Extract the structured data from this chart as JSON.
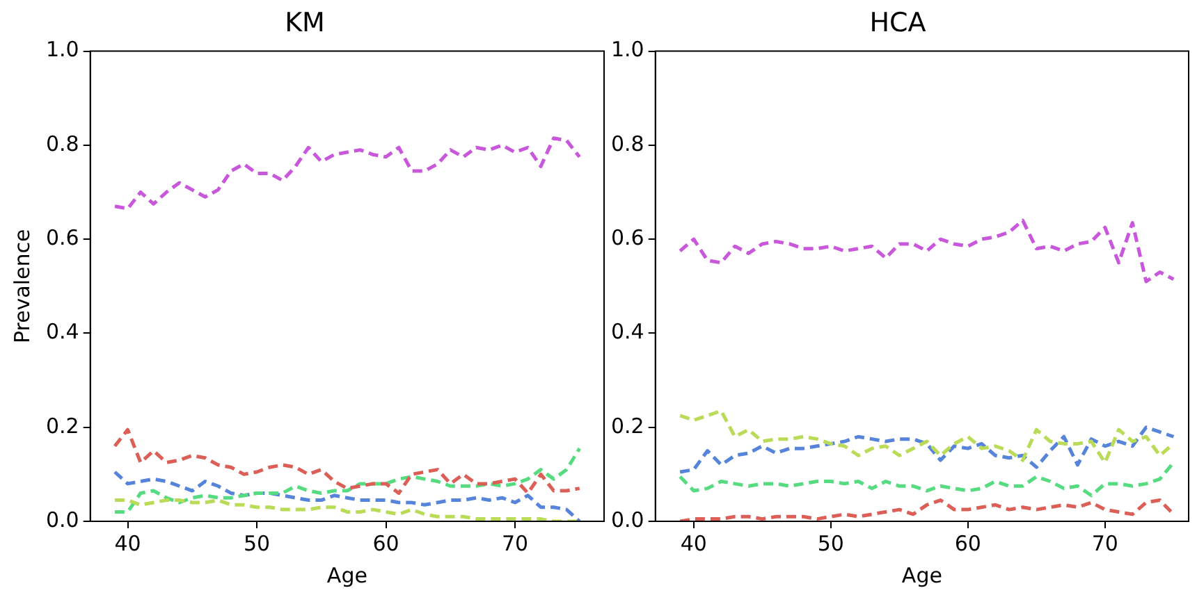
{
  "chart_data": [
    {
      "type": "line",
      "title": "KM",
      "xlabel": "Age",
      "ylabel": "Prevalence",
      "x": [
        39,
        40,
        41,
        42,
        43,
        44,
        45,
        46,
        47,
        48,
        49,
        50,
        51,
        52,
        53,
        54,
        55,
        56,
        57,
        58,
        59,
        60,
        61,
        62,
        63,
        64,
        65,
        66,
        67,
        68,
        69,
        70,
        71,
        72,
        73,
        74,
        75
      ],
      "xlim": [
        37.1,
        76.9
      ],
      "xticks": [
        40,
        50,
        60,
        70
      ],
      "ylim": [
        0,
        1
      ],
      "yticks": [
        {
          "value": 0,
          "label": "0.0"
        },
        {
          "value": 0.2,
          "label": "0.2"
        },
        {
          "value": 0.4,
          "label": "0.4"
        },
        {
          "value": 0.6,
          "label": "0.6"
        },
        {
          "value": 0.8,
          "label": "0.8"
        },
        {
          "value": 1,
          "label": "1.0"
        }
      ],
      "grid": false,
      "legend": false,
      "marker": "none",
      "line_style": "dashed",
      "series": [
        {
          "color": "#db5f57",
          "values": [
            0.16,
            0.195,
            0.125,
            0.15,
            0.125,
            0.13,
            0.14,
            0.135,
            0.12,
            0.115,
            0.1,
            0.105,
            0.115,
            0.12,
            0.115,
            0.1,
            0.11,
            0.085,
            0.07,
            0.075,
            0.08,
            0.08,
            0.06,
            0.1,
            0.105,
            0.11,
            0.08,
            0.1,
            0.08,
            0.08,
            0.085,
            0.09,
            0.06,
            0.1,
            0.065,
            0.065,
            0.07
          ]
        },
        {
          "color": "#b9db57",
          "values": [
            0.045,
            0.045,
            0.035,
            0.04,
            0.045,
            0.045,
            0.04,
            0.04,
            0.045,
            0.035,
            0.035,
            0.03,
            0.03,
            0.025,
            0.025,
            0.025,
            0.03,
            0.03,
            0.02,
            0.02,
            0.025,
            0.02,
            0.015,
            0.025,
            0.015,
            0.01,
            0.01,
            0.01,
            0.005,
            0.005,
            0.005,
            0.005,
            0.005,
            0.005,
            0,
            0,
            0
          ]
        },
        {
          "color": "#57db80",
          "values": [
            0.02,
            0.02,
            0.06,
            0.065,
            0.05,
            0.04,
            0.05,
            0.055,
            0.05,
            0.05,
            0.055,
            0.06,
            0.06,
            0.06,
            0.075,
            0.065,
            0.06,
            0.065,
            0.065,
            0.08,
            0.08,
            0.08,
            0.09,
            0.095,
            0.09,
            0.085,
            0.075,
            0.075,
            0.075,
            0.08,
            0.075,
            0.08,
            0.09,
            0.11,
            0.09,
            0.11,
            0.155
          ]
        },
        {
          "color": "#5784db",
          "values": [
            0.105,
            0.08,
            0.085,
            0.09,
            0.085,
            0.075,
            0.065,
            0.085,
            0.075,
            0.06,
            0.055,
            0.06,
            0.06,
            0.055,
            0.05,
            0.045,
            0.045,
            0.055,
            0.05,
            0.045,
            0.045,
            0.045,
            0.04,
            0.04,
            0.035,
            0.04,
            0.045,
            0.045,
            0.05,
            0.045,
            0.05,
            0.04,
            0.055,
            0.03,
            0.03,
            0.025,
            0
          ]
        },
        {
          "color": "#c957db",
          "values": [
            0.67,
            0.665,
            0.7,
            0.675,
            0.7,
            0.72,
            0.705,
            0.69,
            0.705,
            0.745,
            0.76,
            0.74,
            0.74,
            0.725,
            0.755,
            0.795,
            0.765,
            0.78,
            0.785,
            0.79,
            0.78,
            0.775,
            0.795,
            0.745,
            0.745,
            0.76,
            0.79,
            0.775,
            0.795,
            0.79,
            0.8,
            0.785,
            0.795,
            0.755,
            0.815,
            0.81,
            0.775
          ]
        }
      ]
    },
    {
      "type": "line",
      "title": "HCA",
      "xlabel": "Age",
      "x": [
        39,
        40,
        41,
        42,
        43,
        44,
        45,
        46,
        47,
        48,
        49,
        50,
        51,
        52,
        53,
        54,
        55,
        56,
        57,
        58,
        59,
        60,
        61,
        62,
        63,
        64,
        65,
        66,
        67,
        68,
        69,
        70,
        71,
        72,
        73,
        74,
        75
      ],
      "xlim": [
        37.2,
        76.1
      ],
      "xticks": [
        40,
        50,
        60,
        70
      ],
      "ylim": [
        0,
        1
      ],
      "yticks": [
        {
          "value": 0,
          "label": "0.0"
        },
        {
          "value": 0.2,
          "label": "0.2"
        },
        {
          "value": 0.4,
          "label": "0.4"
        },
        {
          "value": 0.6,
          "label": "0.6"
        },
        {
          "value": 0.8,
          "label": "0.8"
        },
        {
          "value": 1,
          "label": "1.0"
        }
      ],
      "grid": false,
      "legend": false,
      "marker": "none",
      "line_style": "dashed",
      "series": [
        {
          "color": "#db5f57",
          "values": [
            0,
            0.005,
            0.005,
            0.005,
            0.01,
            0.01,
            0.005,
            0.01,
            0.01,
            0.01,
            0.005,
            0.01,
            0.015,
            0.01,
            0.015,
            0.02,
            0.025,
            0.015,
            0.035,
            0.045,
            0.025,
            0.025,
            0.03,
            0.035,
            0.025,
            0.03,
            0.025,
            0.03,
            0.035,
            0.03,
            0.04,
            0.025,
            0.02,
            0.015,
            0.04,
            0.045,
            0.015
          ]
        },
        {
          "color": "#b9db57",
          "values": [
            0.225,
            0.215,
            0.225,
            0.235,
            0.18,
            0.195,
            0.17,
            0.175,
            0.175,
            0.18,
            0.175,
            0.165,
            0.16,
            0.14,
            0.155,
            0.16,
            0.14,
            0.155,
            0.17,
            0.14,
            0.165,
            0.18,
            0.155,
            0.16,
            0.15,
            0.13,
            0.195,
            0.17,
            0.165,
            0.165,
            0.17,
            0.125,
            0.195,
            0.17,
            0.18,
            0.14,
            0.165
          ]
        },
        {
          "color": "#57db80",
          "values": [
            0.095,
            0.065,
            0.07,
            0.085,
            0.08,
            0.075,
            0.08,
            0.08,
            0.075,
            0.08,
            0.085,
            0.085,
            0.08,
            0.085,
            0.07,
            0.085,
            0.075,
            0.075,
            0.065,
            0.075,
            0.07,
            0.065,
            0.07,
            0.085,
            0.075,
            0.075,
            0.095,
            0.085,
            0.07,
            0.075,
            0.055,
            0.08,
            0.08,
            0.075,
            0.08,
            0.09,
            0.125
          ]
        },
        {
          "color": "#5784db",
          "values": [
            0.105,
            0.11,
            0.15,
            0.12,
            0.14,
            0.145,
            0.16,
            0.145,
            0.155,
            0.155,
            0.16,
            0.165,
            0.17,
            0.18,
            0.175,
            0.17,
            0.175,
            0.175,
            0.165,
            0.13,
            0.16,
            0.155,
            0.165,
            0.14,
            0.135,
            0.14,
            0.115,
            0.15,
            0.18,
            0.12,
            0.175,
            0.16,
            0.17,
            0.16,
            0.2,
            0.19,
            0.18
          ]
        },
        {
          "color": "#c957db",
          "values": [
            0.575,
            0.6,
            0.555,
            0.55,
            0.585,
            0.57,
            0.59,
            0.595,
            0.59,
            0.58,
            0.58,
            0.585,
            0.575,
            0.58,
            0.585,
            0.56,
            0.59,
            0.59,
            0.575,
            0.6,
            0.59,
            0.585,
            0.6,
            0.605,
            0.615,
            0.64,
            0.58,
            0.585,
            0.575,
            0.59,
            0.595,
            0.625,
            0.55,
            0.635,
            0.51,
            0.53,
            0.515
          ]
        }
      ]
    }
  ]
}
